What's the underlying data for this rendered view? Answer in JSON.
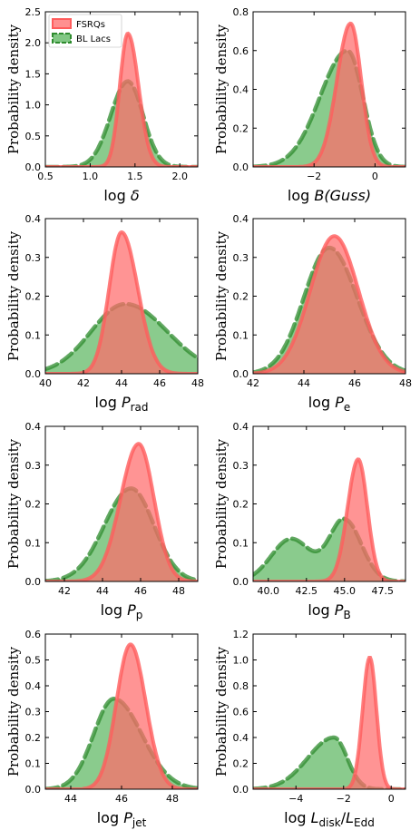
{
  "legend": {
    "fsrq": "FSRQs",
    "bllac": "BL Lacs"
  },
  "colors": {
    "fsrq_fill": "#ff6b6b",
    "fsrq_line": "#ff5c5c",
    "bllac_fill": "#4caf50",
    "bllac_line": "#2e8b2e",
    "axis": "#000000"
  },
  "chart_data": [
    {
      "type": "area",
      "ylabel": "Probability density",
      "xlabel": {
        "prefix": "log ",
        "symbol": "δ",
        "sub": "",
        "rest": ""
      },
      "xlim": [
        0.5,
        2.2
      ],
      "ylim": [
        0,
        2.5
      ],
      "xticks": [
        0.5,
        1.0,
        1.5,
        2.0
      ],
      "xtick_labels": [
        "0.5",
        "1.0",
        "1.5",
        "2.0"
      ],
      "yticks": [
        0,
        0.5,
        1.0,
        1.5,
        2.0,
        2.5
      ],
      "ytick_labels": [
        "0.0",
        "0.5",
        "1.0",
        "1.5",
        "2.0",
        "2.5"
      ],
      "legend": "top-left",
      "series": [
        {
          "name": "FSRQs",
          "peak_x": 1.42,
          "peak_y": 2.15,
          "left_width": 0.09,
          "right_width": 0.12,
          "x_range": [
            0.5,
            2.2
          ]
        },
        {
          "name": "BL Lacs",
          "peak_x": 1.42,
          "peak_y": 1.38,
          "left_width": 0.19,
          "right_width": 0.17,
          "x_range": [
            0.5,
            2.2
          ]
        }
      ]
    },
    {
      "type": "area",
      "ylabel": "",
      "xlabel": {
        "prefix": "log ",
        "symbol": "B",
        "sub": "",
        "rest": "(Guss)"
      },
      "xlim": [
        -4,
        1
      ],
      "ylim": [
        0,
        0.8
      ],
      "xticks": [
        -2,
        0
      ],
      "xtick_labels": [
        "−2",
        "0"
      ],
      "yticks": [
        0,
        0.2,
        0.4,
        0.6,
        0.8
      ],
      "ytick_labels": [
        "0.0",
        "0.2",
        "0.4",
        "0.6",
        "0.8"
      ],
      "series": [
        {
          "name": "FSRQs",
          "peak_x": -0.8,
          "peak_y": 0.74,
          "left_width": 0.45,
          "right_width": 0.35,
          "x_range": [
            -2.5,
            1
          ]
        },
        {
          "name": "BL Lacs",
          "peak_x": -0.9,
          "peak_y": 0.6,
          "left_width": 0.9,
          "right_width": 0.5,
          "x_range": [
            -4,
            1
          ]
        }
      ]
    },
    {
      "type": "area",
      "ylabel": "Probability density",
      "xlabel": {
        "prefix": "log ",
        "symbol": "P",
        "sub": "rad",
        "rest": ""
      },
      "xlim": [
        40,
        48
      ],
      "ylim": [
        0,
        0.4
      ],
      "xticks": [
        40,
        42,
        44,
        46,
        48
      ],
      "xtick_labels": [
        "40",
        "42",
        "44",
        "46",
        "48"
      ],
      "yticks": [
        0,
        0.1,
        0.2,
        0.3,
        0.4
      ],
      "ytick_labels": [
        "0.0",
        "0.1",
        "0.2",
        "0.3",
        "0.4"
      ],
      "series": [
        {
          "name": "FSRQs",
          "peak_x": 44.0,
          "peak_y": 0.365,
          "left_width": 0.65,
          "right_width": 0.85,
          "x_range": [
            41,
            47.5
          ]
        },
        {
          "name": "BL Lacs",
          "peak_x": 44.2,
          "peak_y": 0.18,
          "left_width": 1.8,
          "right_width": 2.2,
          "x_range": [
            40,
            48
          ]
        }
      ]
    },
    {
      "type": "area",
      "ylabel": "",
      "xlabel": {
        "prefix": "log ",
        "symbol": "P",
        "sub": "e",
        "rest": ""
      },
      "xlim": [
        42,
        48
      ],
      "ylim": [
        0,
        0.4
      ],
      "xticks": [
        42,
        44,
        46,
        48
      ],
      "xtick_labels": [
        "42",
        "44",
        "46",
        "48"
      ],
      "yticks": [
        0,
        0.1,
        0.2,
        0.3,
        0.4
      ],
      "ytick_labels": [
        "0.0",
        "0.1",
        "0.2",
        "0.3",
        "0.4"
      ],
      "series": [
        {
          "name": "FSRQs",
          "peak_x": 45.2,
          "peak_y": 0.355,
          "left_width": 0.95,
          "right_width": 0.95,
          "x_range": [
            42,
            48
          ]
        },
        {
          "name": "BL Lacs",
          "peak_x": 45.0,
          "peak_y": 0.325,
          "left_width": 1.0,
          "right_width": 1.1,
          "x_range": [
            42,
            48
          ]
        }
      ]
    },
    {
      "type": "area",
      "ylabel": "Probability density",
      "xlabel": {
        "prefix": "log ",
        "symbol": "P",
        "sub": "p",
        "rest": ""
      },
      "xlim": [
        41,
        49
      ],
      "ylim": [
        0,
        0.4
      ],
      "xticks": [
        42,
        44,
        46,
        48
      ],
      "xtick_labels": [
        "42",
        "44",
        "46",
        "48"
      ],
      "yticks": [
        0,
        0.1,
        0.2,
        0.3,
        0.4
      ],
      "ytick_labels": [
        "0.0",
        "0.1",
        "0.2",
        "0.3",
        "0.4"
      ],
      "series": [
        {
          "name": "FSRQs",
          "peak_x": 45.9,
          "peak_y": 0.355,
          "left_width": 0.95,
          "right_width": 0.8,
          "x_range": [
            42,
            49
          ]
        },
        {
          "name": "BL Lacs",
          "peak_x": 45.5,
          "peak_y": 0.24,
          "left_width": 1.4,
          "right_width": 1.2,
          "x_range": [
            41,
            49
          ]
        }
      ]
    },
    {
      "type": "area",
      "ylabel": "",
      "xlabel": {
        "prefix": "log ",
        "symbol": "P",
        "sub": "B",
        "rest": ""
      },
      "xlim": [
        39,
        49
      ],
      "ylim": [
        0,
        0.4
      ],
      "xticks": [
        40.0,
        42.5,
        45.0,
        47.5
      ],
      "xtick_labels": [
        "40.0",
        "42.5",
        "45.0",
        "47.5"
      ],
      "yticks": [
        0,
        0.1,
        0.2,
        0.3,
        0.4
      ],
      "ytick_labels": [
        "0.0",
        "0.1",
        "0.2",
        "0.3",
        "0.4"
      ],
      "series": [
        {
          "name": "FSRQs",
          "peak_x": 45.9,
          "peak_y": 0.315,
          "left_width": 0.7,
          "right_width": 0.6,
          "x_range": [
            40,
            49
          ]
        },
        {
          "name": "BL Lacs",
          "peak_x": 45.0,
          "peak_y": 0.16,
          "left_width": 1.0,
          "right_width": 1.1,
          "x_range": [
            39,
            49
          ],
          "shoulder": {
            "x": 41.5,
            "y": 0.11,
            "width": 1.3
          }
        }
      ]
    },
    {
      "type": "area",
      "ylabel": "Probability density",
      "xlabel": {
        "prefix": "log ",
        "symbol": "P",
        "sub": "jet",
        "rest": ""
      },
      "xlim": [
        43,
        49
      ],
      "ylim": [
        0,
        0.6
      ],
      "xticks": [
        44,
        46,
        48
      ],
      "xtick_labels": [
        "44",
        "46",
        "48"
      ],
      "yticks": [
        0,
        0.1,
        0.2,
        0.3,
        0.4,
        0.5,
        0.6
      ],
      "ytick_labels": [
        "0.0",
        "0.1",
        "0.2",
        "0.3",
        "0.4",
        "0.5",
        "0.6"
      ],
      "series": [
        {
          "name": "FSRQs",
          "peak_x": 46.35,
          "peak_y": 0.56,
          "left_width": 0.55,
          "right_width": 0.6,
          "x_range": [
            44.5,
            49
          ]
        },
        {
          "name": "BL Lacs",
          "peak_x": 45.7,
          "peak_y": 0.35,
          "left_width": 0.8,
          "right_width": 1.1,
          "x_range": [
            43,
            49
          ]
        }
      ]
    },
    {
      "type": "area",
      "ylabel": "",
      "xlabel": {
        "prefix": "log ",
        "symbol": "L",
        "sub": "disk",
        "rest": "",
        "denom_symbol": "L",
        "denom_sub": "Edd"
      },
      "xlim": [
        -5.8,
        0.6
      ],
      "ylim": [
        0,
        1.2
      ],
      "xticks": [
        -4,
        -2,
        0
      ],
      "xtick_labels": [
        "−4",
        "−2",
        "0"
      ],
      "yticks": [
        0,
        0.2,
        0.4,
        0.6,
        0.8,
        1.0,
        1.2
      ],
      "ytick_labels": [
        "0.0",
        "0.2",
        "0.4",
        "0.6",
        "0.8",
        "1.0",
        "1.2"
      ],
      "series": [
        {
          "name": "FSRQs",
          "peak_x": -0.9,
          "peak_y": 1.02,
          "left_width": 0.3,
          "right_width": 0.28,
          "x_range": [
            -3.5,
            0.6
          ]
        },
        {
          "name": "BL Lacs",
          "peak_x": -2.4,
          "peak_y": 0.4,
          "left_width": 1.1,
          "right_width": 0.55,
          "x_range": [
            -5.8,
            0.6
          ]
        }
      ]
    }
  ]
}
